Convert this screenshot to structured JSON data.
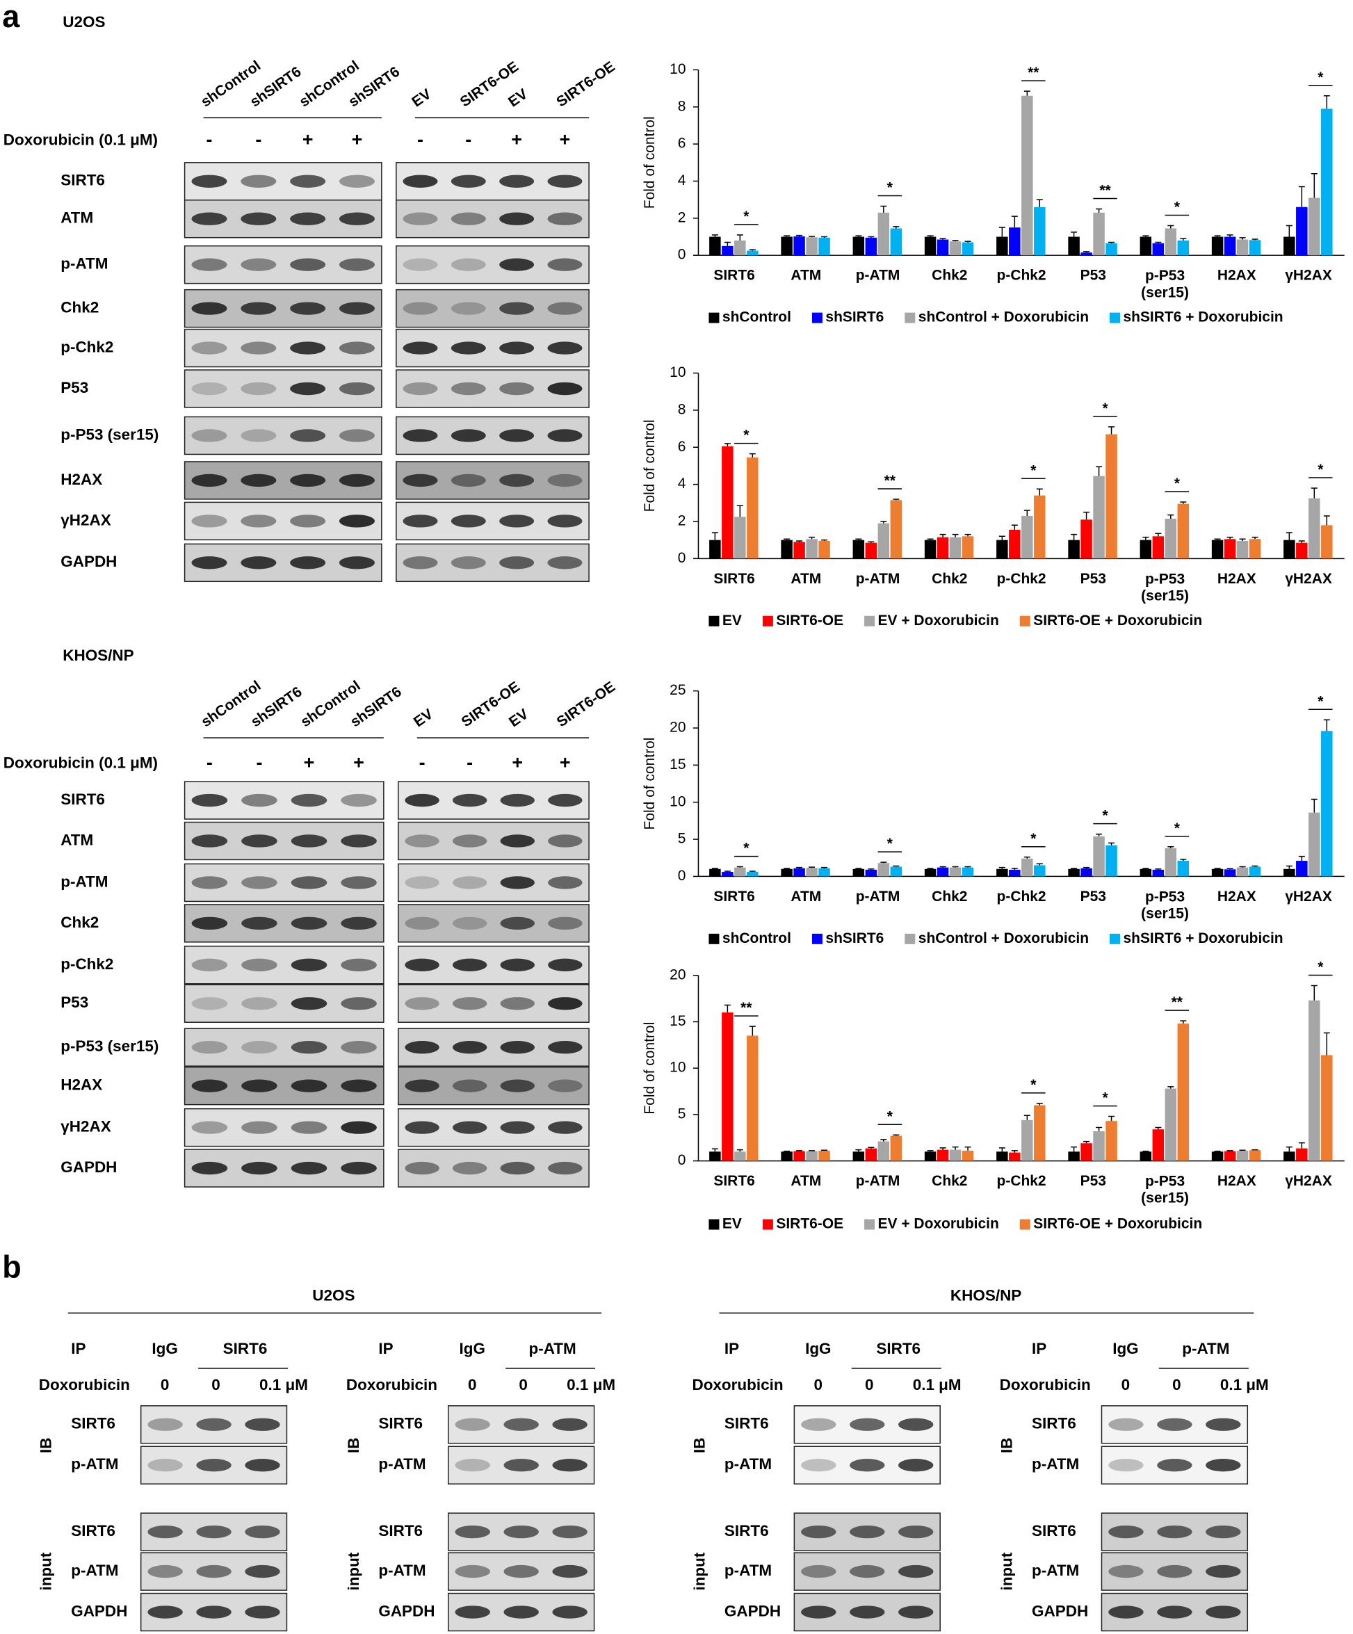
{
  "panel_a": {
    "label": "a",
    "cell_lines": [
      {
        "name": "U2OS",
        "treatment_label": "Doxorubicin (0.1 μM)",
        "blot_groups": [
          {
            "lanes": [
              "shControl",
              "shSIRT6",
              "shControl",
              "shSIRT6"
            ],
            "treatment_signs": [
              "-",
              "-",
              "+",
              "+"
            ]
          },
          {
            "lanes": [
              "EV",
              "SIRT6-OE",
              "EV",
              "SIRT6-OE"
            ],
            "treatment_signs": [
              "-",
              "-",
              "+",
              "+"
            ]
          }
        ],
        "proteins": [
          "SIRT6",
          "ATM",
          "p-ATM",
          "Chk2",
          "p-Chk2",
          "P53",
          "p-P53 (ser15)",
          "H2AX",
          "γH2AX",
          "GAPDH"
        ]
      },
      {
        "name": "KHOS/NP",
        "treatment_label": "Doxorubicin (0.1 μM)",
        "blot_groups": [
          {
            "lanes": [
              "shControl",
              "shSIRT6",
              "shControl",
              "shSIRT6"
            ],
            "treatment_signs": [
              "-",
              "-",
              "+",
              "+"
            ]
          },
          {
            "lanes": [
              "EV",
              "SIRT6-OE",
              "EV",
              "SIRT6-OE"
            ],
            "treatment_signs": [
              "-",
              "-",
              "+",
              "+"
            ]
          }
        ],
        "proteins": [
          "SIRT6",
          "ATM",
          "p-ATM",
          "Chk2",
          "p-Chk2",
          "P53",
          "p-P53 (ser15)",
          "H2AX",
          "γH2AX",
          "GAPDH"
        ]
      }
    ]
  },
  "chart_data": [
    {
      "type": "bar",
      "ylabel": "Fold of control",
      "ylim": [
        0,
        10
      ],
      "yticks": [
        0,
        2,
        4,
        6,
        8,
        10
      ],
      "categories": [
        "SIRT6",
        "ATM",
        "p-ATM",
        "Chk2",
        "p-Chk2",
        "P53",
        "p-P53\n(ser15)",
        "H2AX",
        "γH2AX"
      ],
      "series": [
        {
          "name": "shControl",
          "color": "#000000",
          "values": [
            1,
            1,
            1,
            1,
            1,
            1,
            1,
            1,
            1
          ],
          "errors": [
            0.1,
            0.05,
            0.05,
            0.05,
            0.5,
            0.25,
            0.05,
            0.05,
            0.6
          ]
        },
        {
          "name": "shSIRT6",
          "color": "#0000ff",
          "values": [
            0.5,
            1.02,
            0.95,
            0.85,
            1.5,
            0.15,
            0.65,
            1,
            2.6
          ],
          "errors": [
            0.2,
            0.05,
            0.05,
            0.05,
            0.6,
            0.05,
            0.05,
            0.1,
            1.1
          ]
        },
        {
          "name": "shControl + Doxorubicin",
          "color": "#a6a6a6",
          "values": [
            0.8,
            0.97,
            2.3,
            0.75,
            8.6,
            2.3,
            1.45,
            0.85,
            3.1
          ],
          "errors": [
            0.3,
            0.05,
            0.35,
            0.05,
            0.25,
            0.2,
            0.15,
            0.1,
            1.3
          ]
        },
        {
          "name": "shSIRT6 + Doxorubicin",
          "color": "#00b0f0",
          "values": [
            0.25,
            0.95,
            1.45,
            0.7,
            2.6,
            0.65,
            0.8,
            0.82,
            7.9
          ],
          "errors": [
            0.05,
            0.05,
            0.1,
            0.05,
            0.4,
            0.05,
            0.1,
            0.05,
            0.7
          ]
        }
      ],
      "annotations": [
        {
          "category": "SIRT6",
          "text": "*"
        },
        {
          "category": "p-ATM",
          "text": "*"
        },
        {
          "category": "p-Chk2",
          "text": "**"
        },
        {
          "category": "P53",
          "text": "**"
        },
        {
          "category": "p-P53\n(ser15)",
          "text": "*"
        },
        {
          "category": "γH2AX",
          "text": "*"
        }
      ]
    },
    {
      "type": "bar",
      "ylabel": "Fold of control",
      "ylim": [
        0,
        10
      ],
      "yticks": [
        0,
        2,
        4,
        6,
        8,
        10
      ],
      "categories": [
        "SIRT6",
        "ATM",
        "p-ATM",
        "Chk2",
        "p-Chk2",
        "P53",
        "p-P53\n(ser15)",
        "H2AX",
        "γH2AX"
      ],
      "series": [
        {
          "name": "EV",
          "color": "#000000",
          "values": [
            1,
            1,
            1,
            1,
            1,
            1,
            1,
            1,
            1
          ],
          "errors": [
            0.4,
            0.05,
            0.05,
            0.05,
            0.2,
            0.3,
            0.15,
            0.05,
            0.4
          ]
        },
        {
          "name": "SIRT6-OE",
          "color": "#ff0000",
          "values": [
            6.05,
            0.9,
            0.85,
            1.15,
            1.55,
            2.1,
            1.2,
            1.05,
            0.85
          ],
          "errors": [
            0.15,
            0.05,
            0.05,
            0.15,
            0.25,
            0.4,
            0.15,
            0.1,
            0.1
          ]
        },
        {
          "name": "EV + Doxorubicin",
          "color": "#a6a6a6",
          "values": [
            2.25,
            1.05,
            1.9,
            1.15,
            2.3,
            4.45,
            2.15,
            0.95,
            3.25
          ],
          "errors": [
            0.6,
            0.1,
            0.1,
            0.15,
            0.3,
            0.5,
            0.2,
            0.1,
            0.55
          ]
        },
        {
          "name": "SIRT6-OE + Doxorubicin",
          "color": "#ed7d31",
          "values": [
            5.45,
            0.95,
            3.15,
            1.2,
            3.4,
            6.7,
            2.95,
            1.05,
            1.8
          ],
          "errors": [
            0.2,
            0.05,
            0.05,
            0.1,
            0.35,
            0.4,
            0.1,
            0.1,
            0.5
          ]
        }
      ],
      "annotations": [
        {
          "category": "SIRT6",
          "text": "*"
        },
        {
          "category": "p-ATM",
          "text": "**"
        },
        {
          "category": "p-Chk2",
          "text": "*"
        },
        {
          "category": "P53",
          "text": "*"
        },
        {
          "category": "p-P53\n(ser15)",
          "text": "*"
        },
        {
          "category": "γH2AX",
          "text": "*"
        }
      ]
    },
    {
      "type": "bar",
      "ylabel": "Fold of control",
      "ylim": [
        0,
        25
      ],
      "yticks": [
        0,
        5,
        10,
        15,
        20,
        25
      ],
      "categories": [
        "SIRT6",
        "ATM",
        "p-ATM",
        "Chk2",
        "p-Chk2",
        "P53",
        "p-P53\n(ser15)",
        "H2AX",
        "γH2AX"
      ],
      "series": [
        {
          "name": "shControl",
          "color": "#000000",
          "values": [
            1,
            1,
            1,
            1,
            1,
            1,
            1,
            1,
            1
          ],
          "errors": [
            0.1,
            0.1,
            0.1,
            0.1,
            0.2,
            0.1,
            0.1,
            0.1,
            0.4
          ]
        },
        {
          "name": "shSIRT6",
          "color": "#0000ff",
          "values": [
            0.6,
            1.1,
            0.9,
            1.2,
            0.9,
            1.1,
            0.9,
            0.95,
            2.1
          ],
          "errors": [
            0.1,
            0.1,
            0.1,
            0.1,
            0.2,
            0.1,
            0.1,
            0.1,
            0.6
          ]
        },
        {
          "name": "shControl + Doxorubicin",
          "color": "#a6a6a6",
          "values": [
            1.2,
            1.15,
            1.8,
            1.2,
            2.4,
            5.4,
            3.8,
            1.2,
            8.6
          ],
          "errors": [
            0.1,
            0.1,
            0.1,
            0.1,
            0.2,
            0.3,
            0.2,
            0.1,
            1.8
          ]
        },
        {
          "name": "shSIRT6 + Doxorubicin",
          "color": "#00b0f0",
          "values": [
            0.6,
            1.1,
            1.3,
            1.2,
            1.5,
            4.2,
            2.1,
            1.3,
            19.6
          ],
          "errors": [
            0.1,
            0.1,
            0.1,
            0.1,
            0.2,
            0.3,
            0.2,
            0.1,
            1.5
          ]
        }
      ],
      "annotations": [
        {
          "category": "SIRT6",
          "text": "*"
        },
        {
          "category": "p-ATM",
          "text": "*"
        },
        {
          "category": "p-Chk2",
          "text": "*"
        },
        {
          "category": "P53",
          "text": "*"
        },
        {
          "category": "p-P53\n(ser15)",
          "text": "*"
        },
        {
          "category": "γH2AX",
          "text": "*"
        }
      ]
    },
    {
      "type": "bar",
      "ylabel": "Fold of control",
      "ylim": [
        0,
        20
      ],
      "yticks": [
        0,
        5,
        10,
        15,
        20
      ],
      "categories": [
        "SIRT6",
        "ATM",
        "p-ATM",
        "Chk2",
        "p-Chk2",
        "P53",
        "p-P53\n(ser15)",
        "H2AX",
        "γH2AX"
      ],
      "series": [
        {
          "name": "EV",
          "color": "#000000",
          "values": [
            1,
            1,
            1,
            1,
            1,
            1,
            1,
            1,
            1
          ],
          "errors": [
            0.3,
            0.05,
            0.2,
            0.1,
            0.4,
            0.5,
            0.05,
            0.05,
            0.5
          ]
        },
        {
          "name": "SIRT6-OE",
          "color": "#ff0000",
          "values": [
            16,
            1.05,
            1.35,
            1.2,
            0.9,
            1.9,
            3.4,
            1.05,
            1.35
          ],
          "errors": [
            0.8,
            0.05,
            0.1,
            0.2,
            0.2,
            0.2,
            0.2,
            0.05,
            0.6
          ]
        },
        {
          "name": "EV + Doxorubicin",
          "color": "#a6a6a6",
          "values": [
            1,
            1.05,
            2.1,
            1.2,
            4.4,
            3.2,
            7.8,
            1.1,
            17.3
          ],
          "errors": [
            0.2,
            0.05,
            0.2,
            0.3,
            0.5,
            0.4,
            0.2,
            0.05,
            1.6
          ]
        },
        {
          "name": "SIRT6-OE + Doxorubicin",
          "color": "#ed7d31",
          "values": [
            13.5,
            1.1,
            2.7,
            1.1,
            6,
            4.3,
            14.8,
            1.15,
            11.4
          ],
          "errors": [
            1,
            0.05,
            0.1,
            0.4,
            0.2,
            0.5,
            0.3,
            0.05,
            2.4
          ]
        }
      ],
      "annotations": [
        {
          "category": "SIRT6",
          "text": "**"
        },
        {
          "category": "p-ATM",
          "text": "*"
        },
        {
          "category": "p-Chk2",
          "text": "*"
        },
        {
          "category": "P53",
          "text": "*"
        },
        {
          "category": "p-P53\n(ser15)",
          "text": "**"
        },
        {
          "category": "γH2AX",
          "text": "*"
        }
      ]
    }
  ],
  "panel_b": {
    "label": "b",
    "groups": [
      {
        "title": "U2OS",
        "blots": [
          {
            "ip_label": "IP",
            "ip_lanes": [
              "IgG",
              "SIRT6"
            ],
            "treatment_label": "Doxorubicin",
            "doses": [
              "0",
              "0",
              "0.1 μM"
            ],
            "ib_label": "IB",
            "ib_rows": [
              "SIRT6",
              "p-ATM"
            ],
            "input_label": "input",
            "input_rows": [
              "SIRT6",
              "p-ATM",
              "GAPDH"
            ]
          },
          {
            "ip_label": "IP",
            "ip_lanes": [
              "IgG",
              "p-ATM"
            ],
            "treatment_label": "Doxorubicin",
            "doses": [
              "0",
              "0",
              "0.1 μM"
            ],
            "ib_label": "IB",
            "ib_rows": [
              "SIRT6",
              "p-ATM"
            ],
            "input_label": "input",
            "input_rows": [
              "SIRT6",
              "p-ATM",
              "GAPDH"
            ]
          }
        ]
      },
      {
        "title": "KHOS/NP",
        "blots": [
          {
            "ip_label": "IP",
            "ip_lanes": [
              "IgG",
              "SIRT6"
            ],
            "treatment_label": "Doxorubicin",
            "doses": [
              "0",
              "0",
              "0.1 μM"
            ],
            "ib_label": "IB",
            "ib_rows": [
              "SIRT6",
              "p-ATM"
            ],
            "input_label": "input",
            "input_rows": [
              "SIRT6",
              "p-ATM",
              "GAPDH"
            ]
          },
          {
            "ip_label": "IP",
            "ip_lanes": [
              "IgG",
              "p-ATM"
            ],
            "treatment_label": "Doxorubicin",
            "doses": [
              "0",
              "0",
              "0.1 μM"
            ],
            "ib_label": "IB",
            "ib_rows": [
              "SIRT6",
              "p-ATM"
            ],
            "input_label": "input",
            "input_rows": [
              "SIRT6",
              "p-ATM",
              "GAPDH"
            ]
          }
        ]
      }
    ]
  }
}
